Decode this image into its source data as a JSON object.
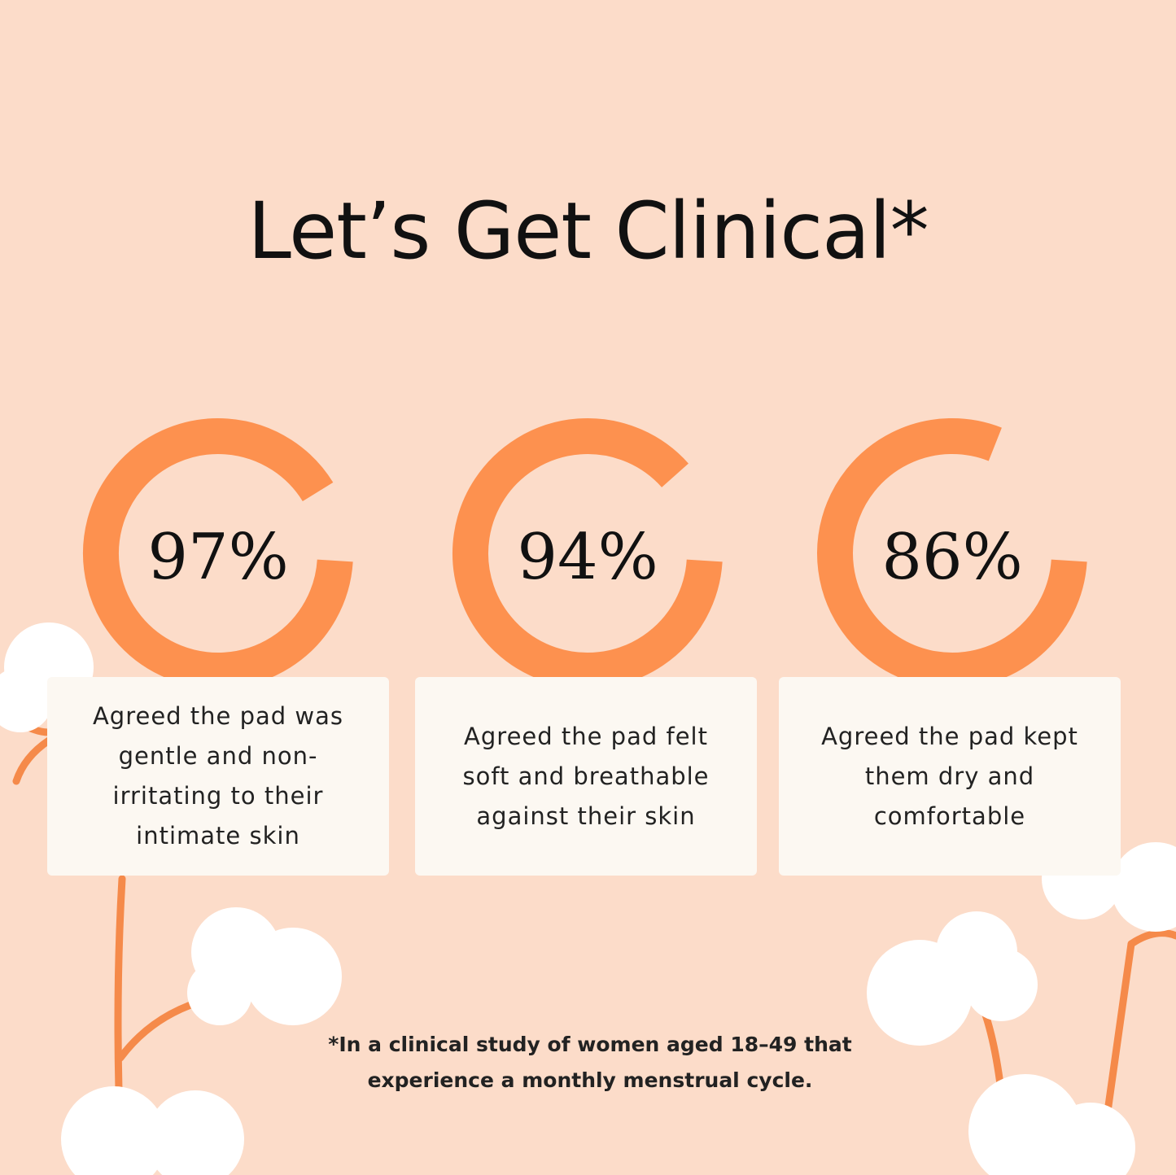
{
  "title": "Let’s Get Clinical*",
  "colors": {
    "background": "#fcdcc9",
    "ring": "#fd914f",
    "card": "#fcf8f2"
  },
  "stats": [
    {
      "value": 97,
      "label": "97%",
      "description": "Agreed the pad was gentle and non-irritating to their intimate skin"
    },
    {
      "value": 94,
      "label": "94%",
      "description": "Agreed the pad felt soft and breathable against their skin"
    },
    {
      "value": 86,
      "label": "86%",
      "description": "Agreed the pad kept them dry and comfortable"
    }
  ],
  "footnote": "*In a clinical study of women aged 18–49 that experience a monthly menstrual cycle."
}
